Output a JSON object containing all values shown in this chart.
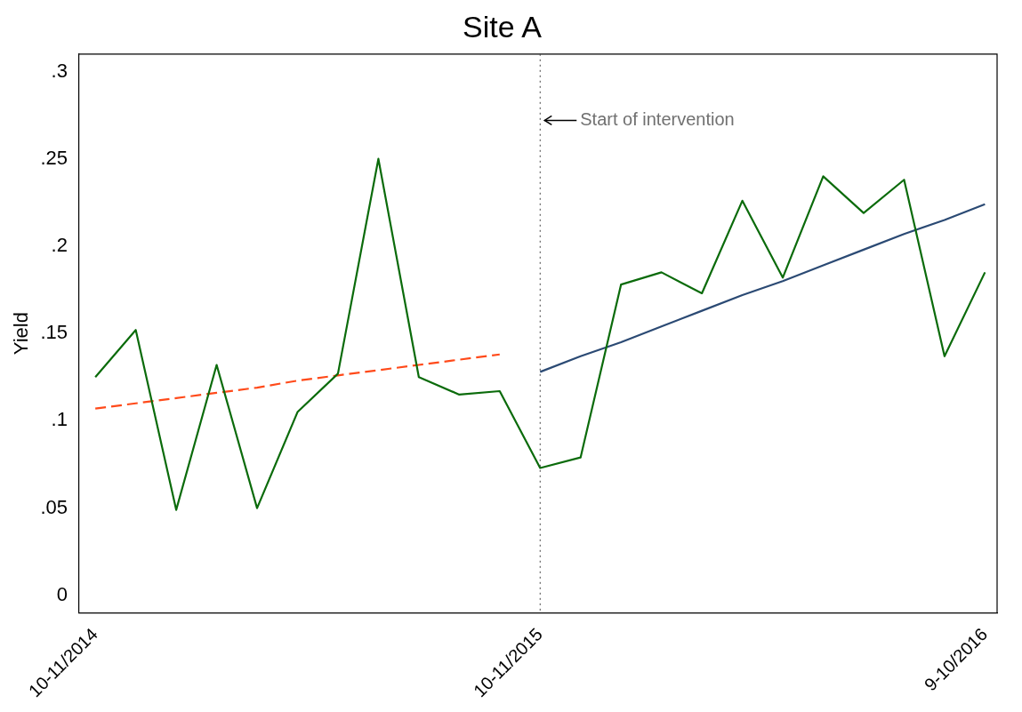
{
  "chart_data": {
    "type": "line",
    "title": "Site A",
    "ylabel": "Yield",
    "categories": [
      "10-11/2014",
      null,
      null,
      null,
      null,
      null,
      null,
      null,
      null,
      null,
      null,
      "10-11/2015",
      null,
      null,
      null,
      null,
      null,
      null,
      null,
      null,
      null,
      null,
      "9-10/2016"
    ],
    "series": [
      {
        "color": "#0b6b0b",
        "values": [
          0.125,
          0.152,
          0.049,
          0.132,
          0.05,
          0.105,
          0.127,
          0.25,
          0.125,
          0.115,
          0.117,
          0.073,
          0.079,
          0.178,
          0.185,
          0.173,
          0.226,
          0.182,
          0.24,
          0.219,
          0.238,
          0.137,
          0.185
        ]
      },
      {
        "type": "line",
        "color": "#ff4a1a",
        "line_style": "dashed",
        "values": [
          0.107,
          0.11,
          0.113,
          0.116,
          0.119,
          0.123,
          0.126,
          0.129,
          0.132,
          0.135,
          0.138,
          null,
          null,
          null,
          null,
          null,
          null,
          null,
          null,
          null,
          null,
          null,
          null
        ]
      },
      {
        "type": "line",
        "color": "#2b4a74",
        "values": [
          null,
          null,
          null,
          null,
          null,
          null,
          null,
          null,
          null,
          null,
          null,
          0.128,
          0.137,
          0.145,
          0.154,
          0.163,
          0.172,
          0.18,
          0.189,
          0.198,
          0.207,
          0.215,
          0.224
        ]
      }
    ],
    "ylim": [
      -0.01,
      0.31
    ],
    "yticks": [
      {
        "value": 0,
        "label": "0"
      },
      {
        "value": 0.05,
        "label": ".05"
      },
      {
        "value": 0.1,
        "label": ".1"
      },
      {
        "value": 0.15,
        "label": ".15"
      },
      {
        "value": 0.2,
        "label": ".2"
      },
      {
        "value": 0.25,
        "label": ".25"
      },
      {
        "value": 0.3,
        "label": ".3"
      }
    ],
    "ref_lines": [
      {
        "axis": "x",
        "value": "10-11/2015",
        "color": "#444444",
        "line_style": "dotted"
      }
    ],
    "annotations": [
      {
        "text": "Start of intervention",
        "x": "10-11/2015",
        "y": 0.272
      }
    ],
    "grid": false,
    "legend": false,
    "marker": "none",
    "line_style": "solid"
  }
}
